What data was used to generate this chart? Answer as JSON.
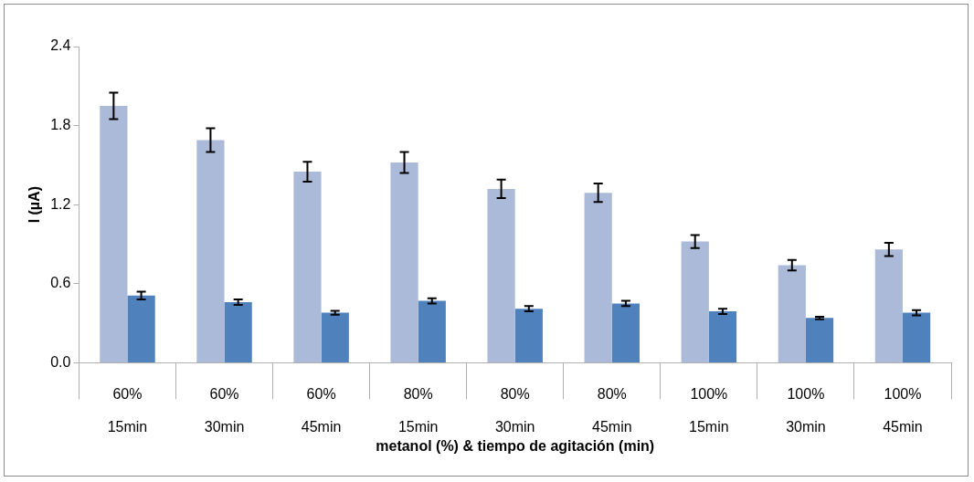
{
  "chart_data": {
    "type": "bar",
    "xlabel": "metanol (%) & tiempo de agitación (min)",
    "ylabel": "I (µA)",
    "categories": [
      "60%\n15min",
      "60%\n30min",
      "60%\n45min",
      "80%\n15min",
      "80%\n30min",
      "80%\n45min",
      "100%\n15min",
      "100%\n30min",
      "100%\n45min"
    ],
    "series": [
      {
        "color": "#abbad8",
        "values": [
          1.95,
          1.69,
          1.45,
          1.52,
          1.32,
          1.29,
          0.92,
          0.74,
          0.86
        ],
        "errors": [
          0.1,
          0.09,
          0.075,
          0.08,
          0.07,
          0.07,
          0.05,
          0.04,
          0.05
        ]
      },
      {
        "color": "#4f81bd",
        "values": [
          0.51,
          0.46,
          0.38,
          0.47,
          0.41,
          0.45,
          0.39,
          0.34,
          0.38
        ],
        "errors": [
          0.03,
          0.02,
          0.015,
          0.02,
          0.02,
          0.02,
          0.02,
          0.01,
          0.02
        ]
      }
    ],
    "ylim": [
      0,
      2.4
    ],
    "yticks": [
      {
        "value": 0,
        "label": "0.0"
      },
      {
        "value": 0.6,
        "label": "0.6"
      },
      {
        "value": 1.2,
        "label": "1.2"
      },
      {
        "value": 1.8,
        "label": "1.8"
      },
      {
        "value": 2.4,
        "label": "2.4"
      }
    ],
    "grid": false,
    "legend": false
  }
}
